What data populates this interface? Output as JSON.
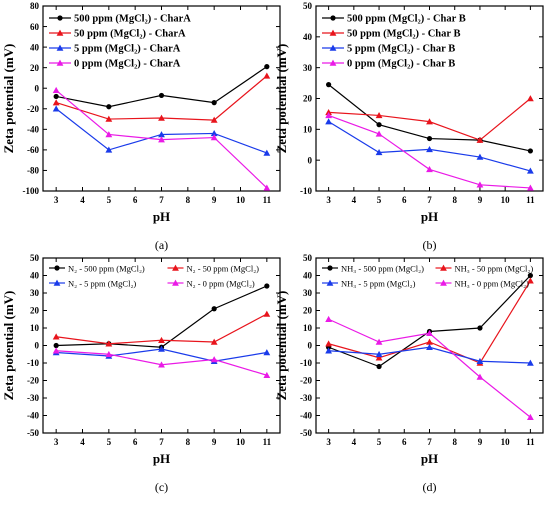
{
  "chart_data": [
    {
      "type": "line",
      "panel_label": "(a)",
      "xlabel": "pH",
      "ylabel": "Zeta potential (mV)",
      "x": [
        3,
        5,
        7,
        9,
        11
      ],
      "xlim": [
        2.5,
        11.5
      ],
      "ylim": [
        -100,
        80
      ],
      "yticks": [
        80,
        60,
        40,
        20,
        0,
        -20,
        -40,
        -60,
        -80,
        -100
      ],
      "xticks": [
        3,
        4,
        5,
        6,
        7,
        8,
        9,
        10,
        11
      ],
      "legend_position": "top-left",
      "grid": false,
      "series": [
        {
          "name": "500 ppm (MgCl₂) - CharA",
          "color": "#000000",
          "marker": "circle",
          "values": [
            -8,
            -18,
            -7,
            -14,
            21
          ]
        },
        {
          "name": "50 ppm (MgCl₂) - CharA",
          "color": "#e8141c",
          "marker": "triangle",
          "values": [
            -14,
            -30,
            -29,
            -31,
            12
          ]
        },
        {
          "name": "5 ppm (MgCl₂) - CharA",
          "color": "#1a3bea",
          "marker": "triangle",
          "values": [
            -20,
            -60,
            -45,
            -44,
            -63
          ]
        },
        {
          "name": "0 ppm (MgCl₂) - CharA",
          "color": "#ea1ae6",
          "marker": "triangle",
          "values": [
            -2,
            -45,
            -50,
            -48,
            -97
          ]
        }
      ]
    },
    {
      "type": "line",
      "panel_label": "(b)",
      "xlabel": "pH",
      "ylabel": "Zeta potential (mV)",
      "x": [
        3,
        5,
        7,
        9,
        11
      ],
      "xlim": [
        2.5,
        11.5
      ],
      "ylim": [
        -10,
        50
      ],
      "yticks": [
        50,
        40,
        30,
        20,
        10,
        0,
        -10
      ],
      "xticks": [
        3,
        4,
        5,
        6,
        7,
        8,
        9,
        10,
        11
      ],
      "legend_position": "top-left",
      "grid": false,
      "series": [
        {
          "name": "500 ppm (MgCl₂) - Char B",
          "color": "#000000",
          "marker": "circle",
          "values": [
            24.5,
            11.5,
            7,
            6.5,
            3
          ]
        },
        {
          "name": "50 ppm (MgCl₂) - Char B",
          "color": "#e8141c",
          "marker": "triangle",
          "values": [
            15.5,
            14.5,
            12.5,
            6.5,
            20
          ]
        },
        {
          "name": "5 ppm (MgCl₂) - Char B",
          "color": "#1a3bea",
          "marker": "triangle",
          "values": [
            12.5,
            2.5,
            3.5,
            1,
            -3.5
          ]
        },
        {
          "name": "0 ppm (MgCl₂) - Char B",
          "color": "#ea1ae6",
          "marker": "triangle",
          "values": [
            14.5,
            8.5,
            -3,
            -8,
            -9
          ]
        }
      ]
    },
    {
      "type": "line",
      "panel_label": "(c)",
      "xlabel": "pH",
      "ylabel": "Zeta potential (mV)",
      "x": [
        3,
        5,
        7,
        9,
        11
      ],
      "xlim": [
        2.5,
        11.5
      ],
      "ylim": [
        -50,
        50
      ],
      "yticks": [
        50,
        40,
        30,
        20,
        10,
        0,
        -10,
        -20,
        -30,
        -40,
        -50
      ],
      "xticks": [
        3,
        4,
        5,
        6,
        7,
        8,
        9,
        10,
        11
      ],
      "legend_position": "top",
      "grid": false,
      "series": [
        {
          "name": "N₂ - 500 ppm (MgCl₂)",
          "color": "#000000",
          "marker": "circle",
          "values": [
            0,
            1,
            -1,
            21,
            34
          ]
        },
        {
          "name": "N₂ - 50 ppm (MgCl₂)",
          "color": "#e8141c",
          "marker": "triangle",
          "values": [
            5,
            1,
            3,
            2,
            18
          ]
        },
        {
          "name": "N₂ - 5 ppm (MgCl₂)",
          "color": "#1a3bea",
          "marker": "triangle",
          "values": [
            -4,
            -6,
            -2,
            -9,
            -4
          ]
        },
        {
          "name": "N₂ - 0 ppm (MgCl₂)",
          "color": "#ea1ae6",
          "marker": "triangle",
          "values": [
            -3,
            -5,
            -11,
            -8,
            -17
          ]
        }
      ]
    },
    {
      "type": "line",
      "panel_label": "(d)",
      "xlabel": "pH",
      "ylabel": "Zeta potential (mV)",
      "x": [
        3,
        5,
        7,
        9,
        11
      ],
      "xlim": [
        2.5,
        11.5
      ],
      "ylim": [
        -50,
        50
      ],
      "yticks": [
        50,
        40,
        30,
        20,
        10,
        0,
        -10,
        -20,
        -30,
        -40,
        -50
      ],
      "xticks": [
        3,
        4,
        5,
        6,
        7,
        8,
        9,
        10,
        11
      ],
      "legend_position": "top",
      "grid": false,
      "series": [
        {
          "name": "NH₃ - 500 ppm (MgCl₂)",
          "color": "#000000",
          "marker": "circle",
          "values": [
            -1,
            -12,
            8,
            10,
            40
          ]
        },
        {
          "name": "NH₃ - 50 ppm (MgCl₂)",
          "color": "#e8141c",
          "marker": "triangle",
          "values": [
            1,
            -7,
            2,
            -10,
            37
          ]
        },
        {
          "name": "NH₃ - 5 ppm (MgCl₂)",
          "color": "#1a3bea",
          "marker": "triangle",
          "values": [
            -3,
            -5,
            -1,
            -9,
            -10
          ]
        },
        {
          "name": "NH₃ - 0 ppm (MgCl₂)",
          "color": "#ea1ae6",
          "marker": "triangle",
          "values": [
            15,
            2,
            7,
            -18,
            -41
          ]
        }
      ]
    }
  ]
}
